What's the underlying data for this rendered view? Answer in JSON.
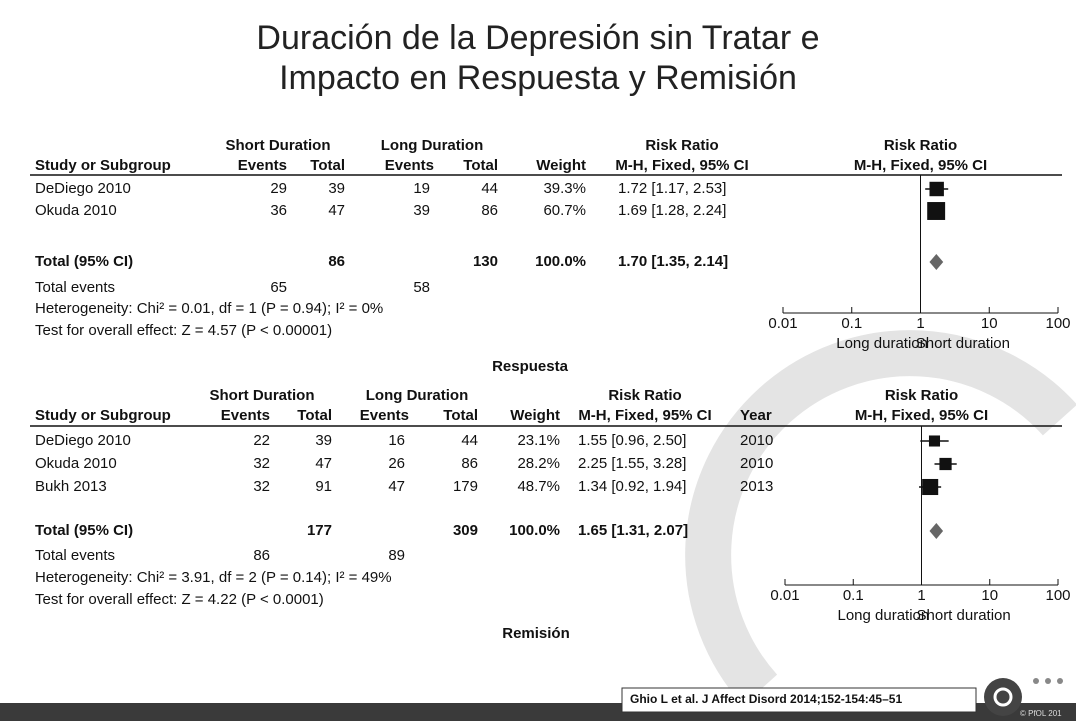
{
  "title": [
    "Duración de la Depresión sin Tratar e",
    "Impacto en Respuesta y Remisión"
  ],
  "plots": [
    {
      "headers": {
        "group1": "Short Duration",
        "group2": "Long Duration",
        "rr1": "Risk Ratio",
        "rr2": "Risk Ratio",
        "study": "Study or Subgroup",
        "events1": "Events",
        "total1": "Total",
        "events2": "Events",
        "total2": "Total",
        "weight": "Weight",
        "method1": "M-H, Fixed, 95% CI",
        "method2": "M-H, Fixed, 95% CI"
      },
      "studies": [
        {
          "name": "DeDiego 2010",
          "e1": 29,
          "t1": 39,
          "e2": 19,
          "t2": 44,
          "weight": 39.3,
          "weight_label": "39.3%",
          "ci": "1.72 [1.17, 2.53]",
          "rr": 1.72,
          "lo": 1.17,
          "hi": 2.53
        },
        {
          "name": "Okuda 2010",
          "e1": 36,
          "t1": 47,
          "e2": 39,
          "t2": 86,
          "weight": 60.7,
          "weight_label": "60.7%",
          "ci": "1.69 [1.28, 2.24]",
          "rr": 1.69,
          "lo": 1.28,
          "hi": 2.24
        }
      ],
      "total": {
        "name": "Total (95% CI)",
        "t1": 86,
        "t2": 130,
        "weight": 100,
        "weight_label": "100.0%",
        "ci": "1.70 [1.35, 2.14]",
        "rr": 1.7,
        "lo": 1.35,
        "hi": 2.14
      },
      "total_events": {
        "name": "Total events",
        "e1": 65,
        "e2": 58
      },
      "heterogeneity": "Heterogeneity: Chi² = 0.01, df = 1 (P = 0.94); I² = 0%",
      "overall": "Test for overall effect: Z = 4.57 (P < 0.00001)",
      "xlim": [
        0.01,
        100
      ],
      "xticks": [
        0.01,
        0.1,
        1,
        10,
        100
      ],
      "log": true,
      "axis_left": "Long duration",
      "axis_right": "Short duration",
      "caption": "Respuesta"
    },
    {
      "headers": {
        "group1": "Short Duration",
        "group2": "Long Duration",
        "rr1": "Risk Ratio",
        "rr2": "Risk Ratio",
        "study": "Study or Subgroup",
        "events1": "Events",
        "total1": "Total",
        "events2": "Events",
        "total2": "Total",
        "weight": "Weight",
        "method1": "M-H, Fixed, 95% CI",
        "year": "Year",
        "method2": "M-H, Fixed, 95% CI"
      },
      "studies": [
        {
          "name": "DeDiego 2010",
          "e1": 22,
          "t1": 39,
          "e2": 16,
          "t2": 44,
          "weight": 23.1,
          "weight_label": "23.1%",
          "ci": "1.55 [0.96, 2.50]",
          "year": 2010,
          "rr": 1.55,
          "lo": 0.96,
          "hi": 2.5
        },
        {
          "name": "Okuda 2010",
          "e1": 32,
          "t1": 47,
          "e2": 26,
          "t2": 86,
          "weight": 28.2,
          "weight_label": "28.2%",
          "ci": "2.25 [1.55, 3.28]",
          "year": 2010,
          "rr": 2.25,
          "lo": 1.55,
          "hi": 3.28
        },
        {
          "name": "Bukh 2013",
          "e1": 32,
          "t1": 91,
          "e2": 47,
          "t2": 179,
          "weight": 48.7,
          "weight_label": "48.7%",
          "ci": "1.34 [0.92, 1.94]",
          "year": 2013,
          "rr": 1.34,
          "lo": 0.92,
          "hi": 1.94
        }
      ],
      "total": {
        "name": "Total (95% CI)",
        "t1": 177,
        "t2": 309,
        "weight": 100,
        "weight_label": "100.0%",
        "ci": "1.65 [1.31, 2.07]",
        "rr": 1.65,
        "lo": 1.31,
        "hi": 2.07
      },
      "total_events": {
        "name": "Total events",
        "e1": 86,
        "e2": 89
      },
      "heterogeneity": "Heterogeneity: Chi² = 3.91, df = 2 (P = 0.14); I² = 49%",
      "overall": "Test for overall effect: Z = 4.22 (P < 0.0001)",
      "xlim": [
        0.01,
        100
      ],
      "xticks": [
        0.01,
        0.1,
        1,
        10,
        100
      ],
      "log": true,
      "axis_left": "Long duration",
      "axis_right": "Short duration",
      "caption": "Remisión"
    }
  ],
  "citation": "Ghio L et al. J Affect Disord 2014;152-154:45–51",
  "footer": "© PfOL 201"
}
